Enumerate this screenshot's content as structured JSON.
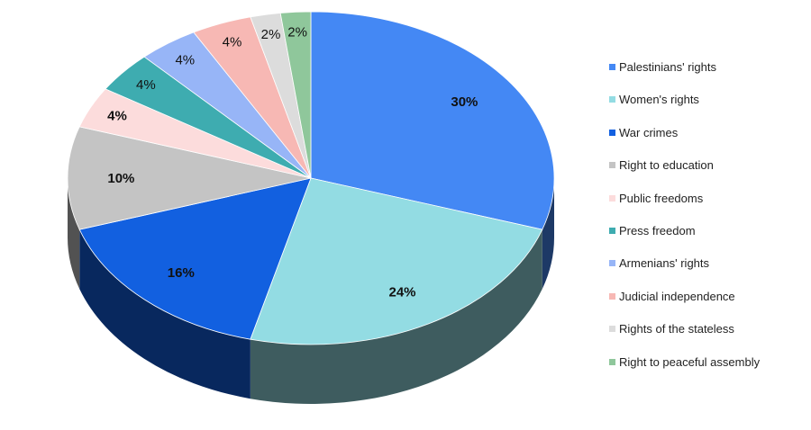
{
  "chart_data": {
    "type": "pie",
    "categories": [
      "Palestinians' rights",
      "Women's rights",
      "War crimes",
      "Right to education",
      "Public freedoms",
      "Press freedom",
      "Armenians' rights",
      "Judicial independence",
      "Rights of the stateless",
      "Right to peaceful assembly"
    ],
    "values": [
      30,
      24,
      16,
      10,
      4,
      4,
      4,
      4,
      2,
      2
    ],
    "data_labels": [
      "30%",
      "24%",
      "16%",
      "10%",
      "4%",
      "4%",
      "4%",
      "4%",
      "2%",
      "2%"
    ],
    "colors": [
      "#4488f4",
      "#93dce3",
      "#1260e0",
      "#c4c4c4",
      "#fcdcdc",
      "#3eacb0",
      "#97b5f7",
      "#f7b8b4",
      "#dcdcdc",
      "#8fc79b"
    ],
    "legend_position": "right",
    "style": "3d-tilted"
  }
}
